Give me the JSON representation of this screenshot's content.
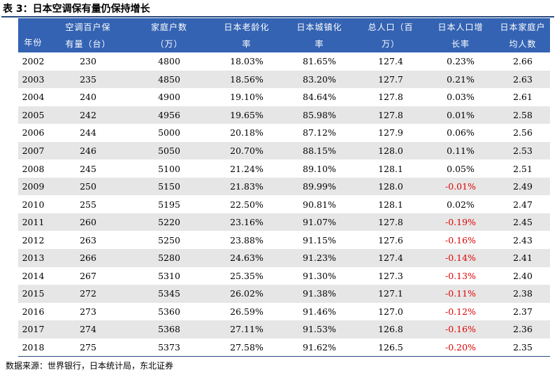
{
  "title": "表 3：日本空调保有量仍保持增长",
  "headers": [
    {
      "line1": "年份",
      "line2": ""
    },
    {
      "line1": "空调百户保",
      "line2": "有量（台）"
    },
    {
      "line1": "家庭户数",
      "line2": "（万）"
    },
    {
      "line1": "日本老龄化",
      "line2": "率"
    },
    {
      "line1": "日本城镇化",
      "line2": "率"
    },
    {
      "line1": "总人口（百",
      "line2": "万）"
    },
    {
      "line1": "日本人口增",
      "line2": "长率"
    },
    {
      "line1": "日本家庭户",
      "line2": "均人数"
    }
  ],
  "rows": [
    [
      "2002",
      "230",
      "4800",
      "18.03%",
      "81.65%",
      "127.4",
      "0.23%",
      "2.66"
    ],
    [
      "2003",
      "235",
      "4850",
      "18.56%",
      "83.20%",
      "127.7",
      "0.21%",
      "2.63"
    ],
    [
      "2004",
      "240",
      "4900",
      "19.10%",
      "84.64%",
      "127.8",
      "0.03%",
      "2.61"
    ],
    [
      "2005",
      "242",
      "4956",
      "19.65%",
      "85.98%",
      "127.8",
      "0.01%",
      "2.58"
    ],
    [
      "2006",
      "244",
      "5000",
      "20.18%",
      "87.12%",
      "127.9",
      "0.06%",
      "2.56"
    ],
    [
      "2007",
      "246",
      "5050",
      "20.70%",
      "88.15%",
      "128.0",
      "0.11%",
      "2.53"
    ],
    [
      "2008",
      "245",
      "5100",
      "21.24%",
      "89.10%",
      "128.1",
      "0.05%",
      "2.51"
    ],
    [
      "2009",
      "250",
      "5150",
      "21.83%",
      "89.99%",
      "128.0",
      "-0.01%",
      "2.49"
    ],
    [
      "2010",
      "255",
      "5195",
      "22.50%",
      "90.81%",
      "128.1",
      "0.02%",
      "2.47"
    ],
    [
      "2011",
      "260",
      "5220",
      "23.16%",
      "91.07%",
      "127.8",
      "-0.19%",
      "2.45"
    ],
    [
      "2012",
      "263",
      "5250",
      "23.88%",
      "91.15%",
      "127.6",
      "-0.16%",
      "2.43"
    ],
    [
      "2013",
      "266",
      "5280",
      "24.63%",
      "91.23%",
      "127.4",
      "-0.14%",
      "2.41"
    ],
    [
      "2014",
      "267",
      "5310",
      "25.35%",
      "91.30%",
      "127.3",
      "-0.13%",
      "2.40"
    ],
    [
      "2015",
      "272",
      "5345",
      "26.02%",
      "91.38%",
      "127.1",
      "-0.11%",
      "2.38"
    ],
    [
      "2016",
      "273",
      "5360",
      "26.59%",
      "91.46%",
      "127.0",
      "-0.12%",
      "2.37"
    ],
    [
      "2017",
      "274",
      "5368",
      "27.11%",
      "91.53%",
      "126.8",
      "-0.16%",
      "2.36"
    ],
    [
      "2018",
      "275",
      "5373",
      "27.58%",
      "91.62%",
      "126.5",
      "-0.20%",
      "2.35"
    ]
  ],
  "source": "数据来源：世界银行，日本统计局，东北证券",
  "colors": {
    "header_bg": "#3463b3",
    "negative": "#e00000",
    "shade": "#e6e6e6"
  }
}
